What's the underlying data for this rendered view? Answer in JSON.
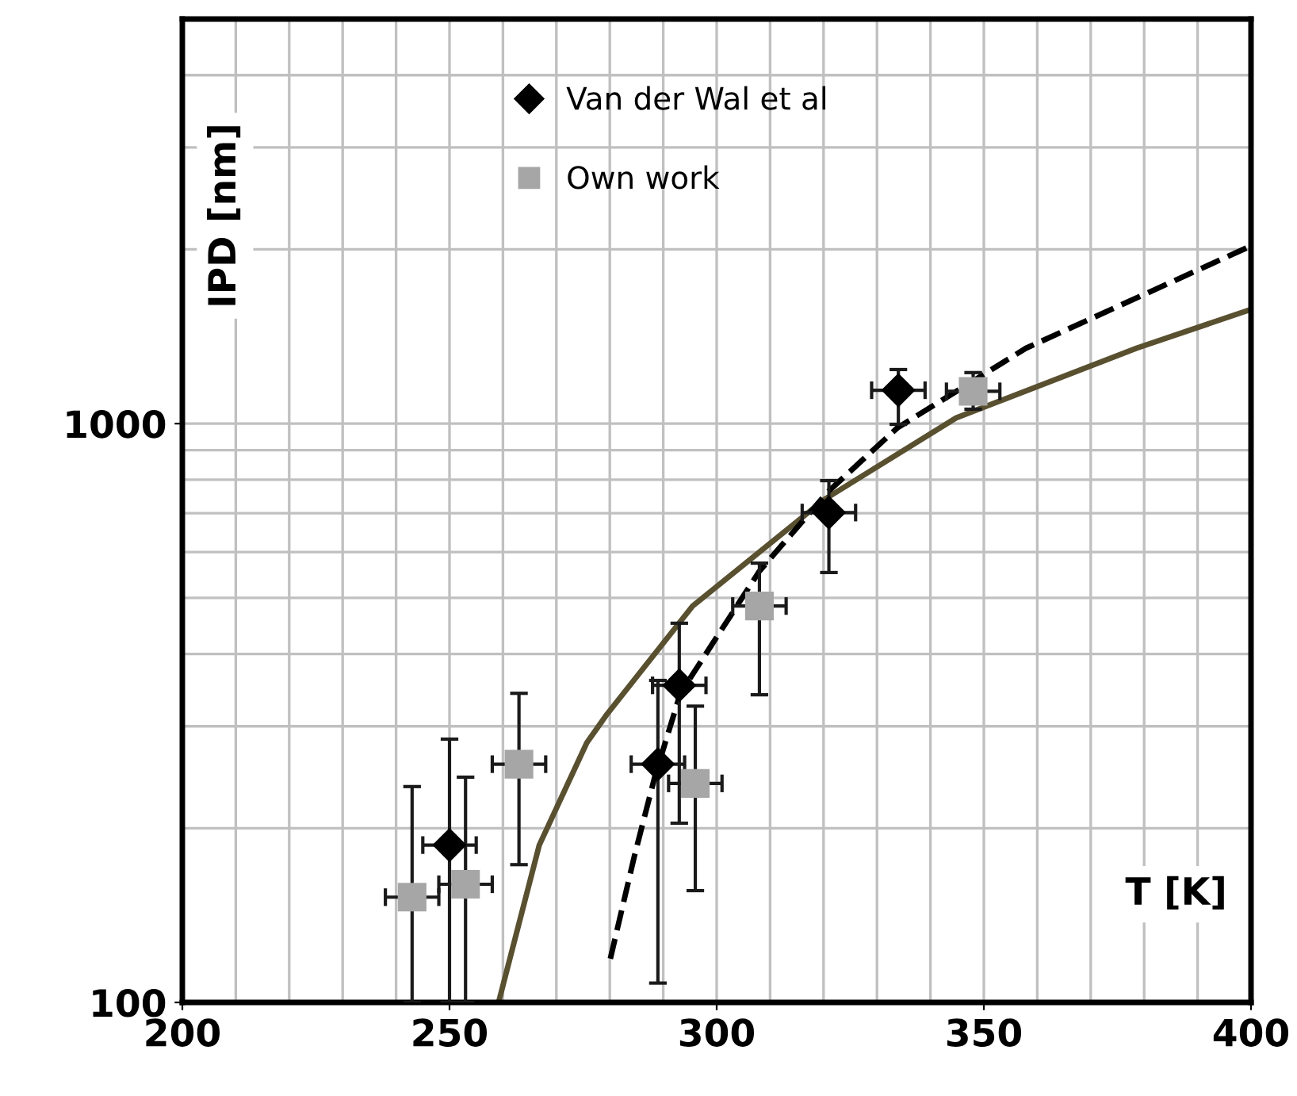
{
  "chart_data": {
    "type": "scatter",
    "xlabel": "T [K]",
    "ylabel": "IPD [nm]",
    "log": "y",
    "xlim": [
      200,
      400
    ],
    "ylim": [
      100,
      5000
    ],
    "xticks": [
      200,
      250,
      300,
      350,
      400
    ],
    "yticks": [
      100,
      1000
    ],
    "grid": true,
    "legend": "top",
    "series": [
      {
        "name": "Van der Wal et al",
        "marker": "diamond",
        "color": "#000000",
        "x": [
          250,
          289,
          293,
          321,
          334
        ],
        "values": [
          187,
          258,
          353,
          702,
          1142
        ],
        "errors": [
          [
            100,
            285
          ],
          [
            108,
            360
          ],
          [
            204,
            452
          ],
          [
            553,
            797
          ],
          [
            997,
            1240
          ]
        ],
        "xerrors": [
          5,
          5,
          5,
          5,
          5
        ]
      },
      {
        "name": "Own work",
        "marker": "square",
        "color": "#a6a6a6",
        "x": [
          243,
          253,
          263,
          296,
          308,
          348
        ],
        "values": [
          152,
          160,
          258,
          239,
          484,
          1137
        ],
        "errors": [
          [
            100,
            236
          ],
          [
            100,
            245
          ],
          [
            173,
            342
          ],
          [
            156,
            325
          ],
          [
            340,
            574
          ],
          [
            1059,
            1225
          ]
        ],
        "xerrors": [
          5,
          5,
          5,
          5,
          5,
          5
        ]
      },
      {
        "type": "line",
        "line_style": "solid",
        "color": "#595030",
        "x": [
          259.3,
          266.8,
          275.7,
          279.5,
          295.5,
          320.2,
          344.8,
          378.6,
          400
        ],
        "values": [
          101,
          187,
          281,
          315,
          484,
          740,
          1023,
          1350,
          1575
        ]
      },
      {
        "type": "line",
        "line_style": "dashed",
        "color": "#000000",
        "x": [
          280.1,
          284.6,
          288.4,
          293.2,
          308,
          320.8,
          333.8,
          357.9,
          400
        ],
        "values": [
          119,
          179,
          245,
          342,
          556,
          762,
          983,
          1350,
          2028
        ]
      }
    ]
  }
}
